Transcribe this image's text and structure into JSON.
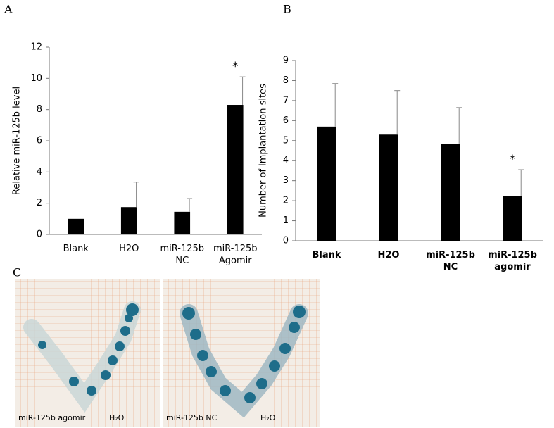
{
  "chart_data": [
    {
      "type": "bar",
      "panel_label": "A",
      "y_label": "Relative miR-125b level",
      "categories": [
        "Blank",
        "H2O",
        "miR-125b NC",
        "miR-125b Agomir"
      ],
      "values": [
        1,
        1.75,
        1.45,
        8.3
      ],
      "errors": [
        null,
        1.6,
        0.85,
        1.8
      ],
      "significance": [
        null,
        null,
        null,
        "*"
      ],
      "color": "#000000",
      "ylim": [
        0,
        12
      ],
      "yticks": [
        0,
        2,
        4,
        6,
        8,
        10,
        12
      ],
      "bold_categories": false
    },
    {
      "type": "bar",
      "panel_label": "B",
      "y_label": "Number of implantation sites",
      "categories": [
        "Blank",
        "H2O",
        "miR-125b NC",
        "miR-125b agomir"
      ],
      "values": [
        5.7,
        5.3,
        4.85,
        2.25
      ],
      "errors": [
        2.15,
        2.2,
        1.8,
        1.3
      ],
      "significance": [
        null,
        null,
        null,
        "*"
      ],
      "color": "#000000",
      "ylim": [
        0,
        9
      ],
      "yticks": [
        0,
        1,
        2,
        3,
        4,
        5,
        6,
        7,
        8,
        9
      ],
      "bold_categories": true
    }
  ],
  "photos": {
    "panel_label": "C",
    "images": [
      {
        "left_caption": "miR-125b agomir",
        "right_caption": "H₂O"
      },
      {
        "left_caption": "miR-125b NC",
        "right_caption": "H₂O"
      }
    ]
  }
}
